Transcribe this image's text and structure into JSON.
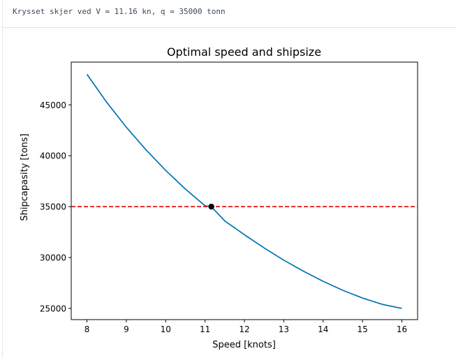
{
  "output": {
    "stdout_line": "Krysset skjer ved V ≈ 11.16 kn, q ≈ 35000 tonn"
  },
  "chart_data": {
    "type": "line",
    "title": "Optimal speed and shipsize",
    "xlabel": "Speed [knots]",
    "ylabel": "Shipcapasity [tons]",
    "xlim": [
      7.6,
      16.4
    ],
    "ylim": [
      23900,
      49200
    ],
    "xticks": [
      8,
      9,
      10,
      11,
      12,
      13,
      14,
      15,
      16
    ],
    "yticks": [
      25000,
      30000,
      35000,
      40000,
      45000
    ],
    "series": [
      {
        "kind": "curve",
        "color": "#0072b2",
        "x": [
          8,
          8.5,
          9,
          9.5,
          10,
          10.5,
          11,
          11.16,
          11.5,
          12,
          12.5,
          13,
          13.5,
          14,
          14.5,
          15,
          15.5,
          16
        ],
        "y": [
          48000,
          45260,
          42800,
          40580,
          38560,
          36730,
          35080,
          35000,
          33600,
          32240,
          30950,
          29740,
          28660,
          27660,
          26780,
          26020,
          25400,
          25000
        ]
      },
      {
        "kind": "hline",
        "style": "dashed",
        "color": "#e00000",
        "y": 35000
      }
    ],
    "intersection": {
      "x": 11.16,
      "y": 35000,
      "color": "#000000"
    },
    "grid": false
  }
}
